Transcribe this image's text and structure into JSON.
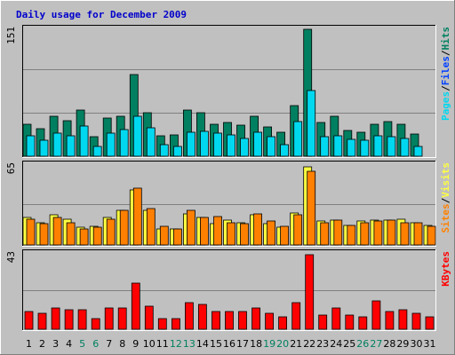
{
  "chart_data": {
    "title": "Daily usage for December 2009",
    "colors": {
      "frame_bg": "#c0c0c0",
      "title": "#0000cc",
      "panel_bg": "#c0c0c0",
      "grid": "#808080",
      "hits": "#008060",
      "files": "#00d8f0",
      "visits": "#ffff40",
      "sites": "#ff8000",
      "kbytes": "#ff0000",
      "weekend_label": "#008060",
      "weekday_label": "#000000",
      "slash": "#000000"
    },
    "days": [
      "1",
      "2",
      "3",
      "4",
      "5",
      "6",
      "7",
      "8",
      "9",
      "10",
      "11",
      "12",
      "13",
      "14",
      "15",
      "16",
      "17",
      "18",
      "19",
      "20",
      "21",
      "22",
      "23",
      "24",
      "25",
      "26",
      "27",
      "28",
      "29",
      "30",
      "31"
    ],
    "weekend_days": [
      "5",
      "6",
      "12",
      "13",
      "19",
      "20",
      "26",
      "27"
    ],
    "panels": [
      {
        "type": "bar",
        "max_label": "151",
        "ymax": 151,
        "legend": [
          "Pages",
          "Files",
          "Hits"
        ],
        "legend_colors": [
          "#00d8f0",
          "#0040ff",
          "#008060"
        ],
        "series": [
          {
            "name": "Hits",
            "values": [
              38,
              33,
              47,
              42,
              55,
              23,
              45,
              47,
              96,
              51,
              24,
              25,
              55,
              51,
              38,
              40,
              37,
              47,
              35,
              28,
              60,
              150,
              40,
              47,
              30,
              28,
              38,
              41,
              38,
              26,
              0
            ]
          },
          {
            "name": "Files",
            "values": [
              24,
              19,
              27,
              24,
              36,
              12,
              27,
              31,
              47,
              34,
              14,
              12,
              28,
              29,
              27,
              25,
              21,
              28,
              23,
              14,
              41,
              78,
              23,
              24,
              20,
              19,
              24,
              23,
              21,
              12,
              0
            ]
          }
        ]
      },
      {
        "type": "bar",
        "max_label": "65",
        "ymax": 65,
        "legend": [
          "Sites",
          "Visits"
        ],
        "legend_colors": [
          "#ff8000",
          "#ffff40"
        ],
        "series": [
          {
            "name": "Visits",
            "values": [
              22,
              18,
              24,
              21,
              14,
              15,
              22,
              28,
              44,
              28,
              13,
              13,
              25,
              22,
              17,
              20,
              18,
              24,
              17,
              14,
              26,
              63,
              19,
              20,
              16,
              19,
              20,
              20,
              21,
              18,
              16
            ]
          },
          {
            "name": "Sites",
            "values": [
              21,
              17,
              22,
              18,
              13,
              14,
              21,
              28,
              46,
              29,
              15,
              13,
              28,
              22,
              23,
              18,
              17,
              25,
              19,
              15,
              24,
              59,
              18,
              20,
              16,
              18,
              19,
              20,
              18,
              18,
              15
            ]
          }
        ]
      },
      {
        "type": "bar",
        "max_label": "43",
        "ymax": 43,
        "legend": [
          "KBytes"
        ],
        "legend_colors": [
          "#ff0000"
        ],
        "series": [
          {
            "name": "KBytes",
            "values": [
              10,
              9,
              12,
              11,
              11,
              6,
              12,
              12,
              26,
              13,
              6,
              6,
              15,
              14,
              10,
              10,
              10,
              12,
              9,
              7,
              15,
              42,
              8,
              12,
              8,
              7,
              16,
              10,
              11,
              9,
              7
            ]
          }
        ]
      }
    ]
  }
}
